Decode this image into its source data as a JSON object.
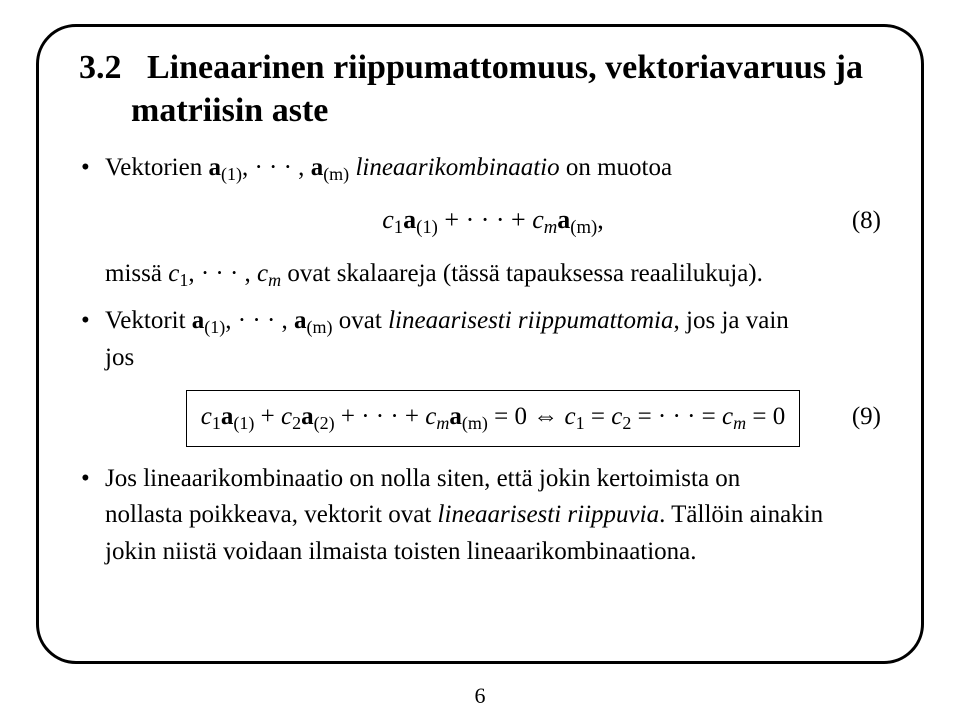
{
  "section": {
    "number": "3.2",
    "title_line1": "Lineaarinen riippumattomuus, vektoriavaruus ja",
    "title_line2": "matriisin aste"
  },
  "bullet1": {
    "pre": "Vektorien ",
    "vecs": "a",
    "sub1": "(1)",
    "dots": ", · · · , ",
    "subm": "(m)",
    "mid_italic": " lineaarikombinaatio",
    "post": " on muotoa"
  },
  "eq8": {
    "body_c1": "c",
    "body_c1_sub": "1",
    "body_a": "a",
    "body_a1_sub": "(1)",
    "plus_dots": " + · · · + ",
    "cm": "c",
    "cm_sub": "m",
    "am_sub": "(m)",
    "comma": ",",
    "num": "(8)"
  },
  "bullet1b": {
    "pre": "missä ",
    "c1": "c",
    "c1_sub": "1",
    "dots": ", · · · , ",
    "cm": "c",
    "cm_sub": "m",
    "post": " ovat skalaareja (tässä tapauksessa reaalilukuja)."
  },
  "bullet2": {
    "pre": "Vektorit ",
    "a": "a",
    "a1_sub": "(1)",
    "dots": ", · · · , ",
    "am_sub": "(m)",
    "mid": " ovat ",
    "italic": "lineaarisesti riippumattomia",
    "post1": ", jos ja vain",
    "post2": "jos"
  },
  "eq9": {
    "c1": "c",
    "c1_sub": "1",
    "a": "a",
    "a1_sub": "(1)",
    "plus1": " + ",
    "c2": "c",
    "c2_sub": "2",
    "a2_sub": "(2)",
    "plus_dots": " + · · · + ",
    "cm": "c",
    "cm_sub": "m",
    "am_sub": "(m)",
    "eq0": " = 0 ⇔ ",
    "rhs_c1": "c",
    "rhs_c1_sub": "1",
    "rhs_eq": " = ",
    "rhs_c2": "c",
    "rhs_c2_sub": "2",
    "rhs_dots": " = · · · = ",
    "rhs_cm": "c",
    "rhs_cm_sub": "m",
    "rhs_end": " = 0",
    "num": "(9)"
  },
  "bullet3": {
    "line1": "Jos lineaarikombinaatio on nolla siten, että jokin kertoimista on",
    "line2_pre": "nollasta poikkeava, vektorit ovat ",
    "line2_italic": "lineaarisesti riippuvia",
    "line2_post": ". Tällöin ainakin",
    "line3": "jokin niistä voidaan ilmaista toisten lineaarikombinaationa."
  },
  "page_number": "6",
  "colors": {
    "text": "#000000",
    "background": "#ffffff",
    "border": "#000000"
  },
  "typography": {
    "title_fontsize_pt": 26,
    "body_fontsize_pt": 19,
    "font_family": "Times New Roman"
  }
}
